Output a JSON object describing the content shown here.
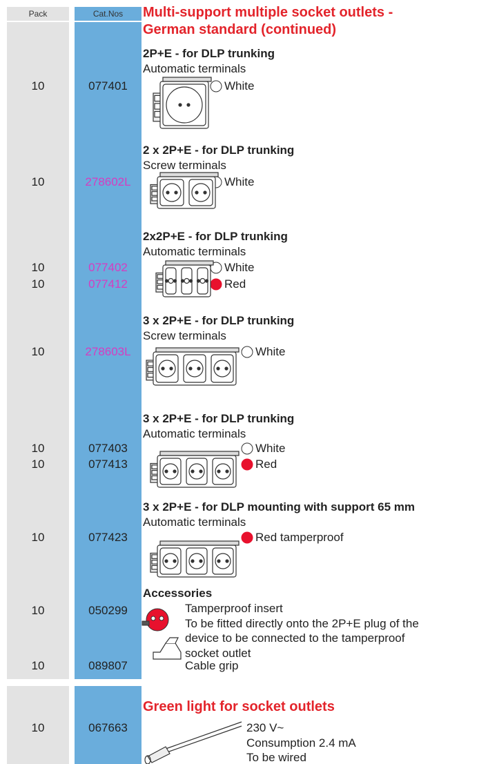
{
  "header": {
    "pack": "Pack",
    "cat_nos": "Cat.Nos",
    "title": [
      "Multi-support multiple socket outlets -",
      "German standard (continued)"
    ]
  },
  "groups": [
    {
      "title": "2P+E - for DLP trunking",
      "subtitle": "Automatic terminals",
      "items": [
        {
          "pack": "10",
          "cat_no": "077401",
          "color": "White",
          "swatch": "#ffffff"
        }
      ]
    },
    {
      "title": "2 x 2P+E - for DLP trunking",
      "subtitle": "Screw terminals",
      "items": [
        {
          "pack": "10",
          "cat_no": "278602L",
          "cat_no_color": "#d63cc0",
          "color": "White",
          "swatch": "#ffffff"
        }
      ]
    },
    {
      "title": "2x2P+E - for DLP trunking",
      "subtitle": "Automatic terminals",
      "items": [
        {
          "pack": "10",
          "cat_no": "077402",
          "cat_no_color": "#d63cc0",
          "color": "White",
          "swatch": "#ffffff"
        },
        {
          "pack": "10",
          "cat_no": "077412",
          "cat_no_color": "#d63cc0",
          "color": "Red",
          "swatch": "#e8112d"
        }
      ]
    },
    {
      "title": "3 x 2P+E - for DLP trunking",
      "subtitle": "Screw terminals",
      "items": [
        {
          "pack": "10",
          "cat_no": "278603L",
          "cat_no_color": "#d63cc0",
          "color": "White",
          "swatch": "#ffffff"
        }
      ]
    },
    {
      "title": "3 x 2P+E - for DLP trunking",
      "subtitle": "Automatic terminals",
      "items": [
        {
          "pack": "10",
          "cat_no": "077403",
          "color": "White",
          "swatch": "#ffffff"
        },
        {
          "pack": "10",
          "cat_no": "077413",
          "color": "Red",
          "swatch": "#e8112d"
        }
      ]
    },
    {
      "title": "3 x 2P+E - for DLP mounting with support 65 mm",
      "subtitle": "Automatic terminals",
      "items": [
        {
          "pack": "10",
          "cat_no": "077423",
          "color": "Red tamperproof",
          "swatch": "#e8112d"
        }
      ]
    }
  ],
  "accessories": {
    "title": "Accessories",
    "items": [
      {
        "pack": "10",
        "cat_no": "050299",
        "lines": [
          "Tamperproof insert",
          "To be fitted directly onto the 2P+E plug of the",
          "device to be connected to the tamperproof",
          "socket outlet"
        ]
      },
      {
        "pack": "10",
        "cat_no": "089807",
        "lines": [
          "Cable grip"
        ]
      }
    ]
  },
  "green_light": {
    "title": "Green light for socket outlets",
    "pack": "10",
    "cat_no": "067663",
    "lines": [
      "230 V~",
      "Consumption 2.4 mA",
      "To be wired"
    ]
  }
}
